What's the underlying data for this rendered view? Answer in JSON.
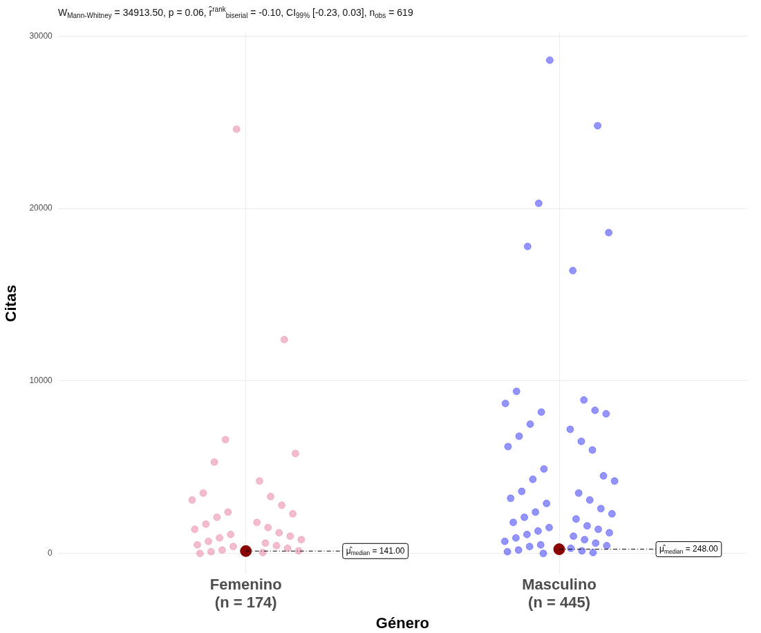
{
  "chart_data": {
    "type": "scatter",
    "title": "W$_{Mann-Whitney}$ = 34913.50, p = 0.06, r̂$^{rank}$$_{biserial}$ = -0.10, CI$_{99%}$ [-0.23, 0.03], n$_{obs}$ = 619",
    "xlabel": "Género",
    "ylabel": "Citas",
    "categories": [
      "Femenino\n(n = 174)",
      "Masculino\n(n = 445)"
    ],
    "ylim": [
      -1200,
      30200
    ],
    "yticks": [
      0,
      10000,
      20000,
      30000
    ],
    "grid": true,
    "legend": false,
    "marker": "circle",
    "series": [
      {
        "x": [
          "Femenino\n(n = 174)",
          "Femenino\n(n = 174)",
          "Femenino\n(n = 174)",
          "Femenino\n(n = 174)",
          "Femenino\n(n = 174)",
          "Femenino\n(n = 174)",
          "Femenino\n(n = 174)",
          "Femenino\n(n = 174)",
          "Femenino\n(n = 174)",
          "Femenino\n(n = 174)",
          "Femenino\n(n = 174)",
          "Femenino\n(n = 174)",
          "Femenino\n(n = 174)",
          "Femenino\n(n = 174)",
          "Femenino\n(n = 174)",
          "Femenino\n(n = 174)",
          "Femenino\n(n = 174)",
          "Femenino\n(n = 174)",
          "Femenino\n(n = 174)",
          "Femenino\n(n = 174)",
          "Femenino\n(n = 174)",
          "Femenino\n(n = 174)",
          "Femenino\n(n = 174)",
          "Femenino\n(n = 174)",
          "Femenino\n(n = 174)",
          "Femenino\n(n = 174)",
          "Femenino\n(n = 174)",
          "Femenino\n(n = 174)",
          "Femenino\n(n = 174)",
          "Femenino\n(n = 174)",
          "Femenino\n(n = 174)",
          "Femenino\n(n = 174)",
          "Femenino\n(n = 174)"
        ],
        "color": "#e0608a",
        "values": [
          24600,
          12400,
          6600,
          5800,
          5300,
          4200,
          3500,
          3300,
          3100,
          2800,
          2400,
          2300,
          2100,
          1800,
          1700,
          1500,
          1400,
          1200,
          1100,
          1000,
          900,
          800,
          700,
          600,
          500,
          450,
          400,
          300,
          200,
          150,
          100,
          50,
          0
        ]
      },
      {
        "x": [
          "Masculino\n(n = 445)",
          "Masculino\n(n = 445)",
          "Masculino\n(n = 445)",
          "Masculino\n(n = 445)",
          "Masculino\n(n = 445)",
          "Masculino\n(n = 445)",
          "Masculino\n(n = 445)",
          "Masculino\n(n = 445)",
          "Masculino\n(n = 445)",
          "Masculino\n(n = 445)",
          "Masculino\n(n = 445)",
          "Masculino\n(n = 445)",
          "Masculino\n(n = 445)",
          "Masculino\n(n = 445)",
          "Masculino\n(n = 445)",
          "Masculino\n(n = 445)",
          "Masculino\n(n = 445)",
          "Masculino\n(n = 445)",
          "Masculino\n(n = 445)",
          "Masculino\n(n = 445)",
          "Masculino\n(n = 445)",
          "Masculino\n(n = 445)",
          "Masculino\n(n = 445)",
          "Masculino\n(n = 445)",
          "Masculino\n(n = 445)",
          "Masculino\n(n = 445)",
          "Masculino\n(n = 445)",
          "Masculino\n(n = 445)",
          "Masculino\n(n = 445)",
          "Masculino\n(n = 445)",
          "Masculino\n(n = 445)",
          "Masculino\n(n = 445)",
          "Masculino\n(n = 445)",
          "Masculino\n(n = 445)",
          "Masculino\n(n = 445)",
          "Masculino\n(n = 445)",
          "Masculino\n(n = 445)",
          "Masculino\n(n = 445)",
          "Masculino\n(n = 445)",
          "Masculino\n(n = 445)",
          "Masculino\n(n = 445)",
          "Masculino\n(n = 445)",
          "Masculino\n(n = 445)",
          "Masculino\n(n = 445)",
          "Masculino\n(n = 445)",
          "Masculino\n(n = 445)",
          "Masculino\n(n = 445)",
          "Masculino\n(n = 445)",
          "Masculino\n(n = 445)",
          "Masculino\n(n = 445)",
          "Masculino\n(n = 445)",
          "Masculino\n(n = 445)",
          "Masculino\n(n = 445)"
        ],
        "color": "#0000ff",
        "values": [
          28600,
          24800,
          20300,
          18600,
          17800,
          16400,
          9400,
          8900,
          8700,
          8300,
          8200,
          8100,
          7500,
          7200,
          6800,
          6500,
          6200,
          6000,
          4900,
          4500,
          4300,
          4200,
          3600,
          3500,
          3200,
          3100,
          2900,
          2600,
          2400,
          2300,
          2100,
          2000,
          1800,
          1600,
          1500,
          1400,
          1300,
          1200,
          1100,
          1000,
          900,
          800,
          700,
          600,
          500,
          450,
          400,
          300,
          200,
          150,
          100,
          50,
          0
        ]
      },
      {
        "x": [
          "Femenino\n(n = 174)",
          "Masculino\n(n = 445)"
        ],
        "color": "#8b0000",
        "values": [
          141,
          248
        ]
      }
    ],
    "annotations": [
      {
        "text": "μ̂$_{median}$ = 141.00",
        "x": "Femenino\n(n = 174)",
        "y": 141
      },
      {
        "text": "μ̂$_{median}$ = 248.00",
        "x": "Masculino\n(n = 445)",
        "y": 248
      }
    ]
  }
}
